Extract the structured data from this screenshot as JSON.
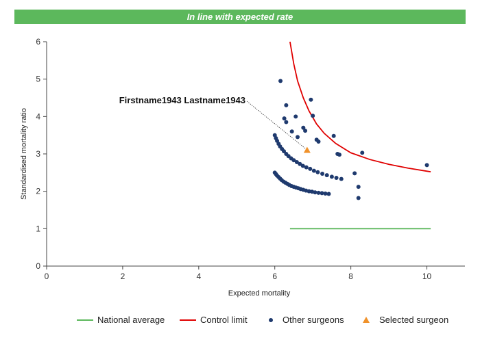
{
  "banner": {
    "text": "In line with expected rate",
    "color": "#5cb85c"
  },
  "chart_data": {
    "type": "scatter",
    "xlabel": "Expected mortality",
    "ylabel": "Standardised mortality ratio",
    "xlim": [
      0,
      11
    ],
    "ylim": [
      0,
      6
    ],
    "xticks": [
      0,
      2,
      4,
      6,
      8,
      10
    ],
    "yticks": [
      0,
      1,
      2,
      3,
      4,
      5,
      6
    ],
    "grid": false,
    "legend_placement": "bottom",
    "annotation": {
      "text": "Firstname1943 Lastname1943",
      "target": [
        6.85,
        3.1
      ]
    },
    "series": [
      {
        "name": "National average",
        "type": "line",
        "color": "#5cb85c",
        "x": [
          6.4,
          10.1
        ],
        "y": [
          1.0,
          1.0
        ]
      },
      {
        "name": "Control limit",
        "type": "line",
        "color": "#e00000",
        "x": [
          6.4,
          6.5,
          6.6,
          6.75,
          6.9,
          7.1,
          7.3,
          7.6,
          8.0,
          8.5,
          9.0,
          9.5,
          10.1
        ],
        "y": [
          6.0,
          5.4,
          4.95,
          4.5,
          4.15,
          3.8,
          3.55,
          3.28,
          3.03,
          2.85,
          2.72,
          2.62,
          2.52
        ]
      },
      {
        "name": "Other surgeons",
        "type": "scatter",
        "color": "#1f3a6e",
        "x": [
          6.0,
          6.03,
          6.06,
          6.1,
          6.14,
          6.18,
          6.23,
          6.28,
          6.33,
          6.38,
          6.44,
          6.5,
          6.56,
          6.62,
          6.68,
          6.75,
          6.82,
          6.9,
          6.98,
          7.06,
          7.15,
          7.24,
          7.33,
          7.42,
          6.0,
          6.03,
          6.06,
          6.1,
          6.14,
          6.19,
          6.24,
          6.3,
          6.36,
          6.43,
          6.5,
          6.58,
          6.66,
          6.74,
          6.83,
          6.93,
          7.03,
          7.13,
          7.25,
          7.37,
          7.5,
          7.62,
          7.75,
          6.15,
          6.25,
          6.3,
          6.3,
          6.45,
          6.55,
          6.6,
          6.75,
          6.8,
          6.95,
          7.0,
          7.1,
          7.15,
          7.55,
          7.65,
          7.7,
          8.1,
          8.2,
          8.2,
          8.3,
          10.0
        ],
        "y": [
          2.5,
          2.46,
          2.42,
          2.38,
          2.34,
          2.3,
          2.26,
          2.23,
          2.2,
          2.17,
          2.14,
          2.12,
          2.1,
          2.08,
          2.06,
          2.04,
          2.02,
          2.0,
          1.99,
          1.97,
          1.96,
          1.95,
          1.94,
          1.93,
          3.5,
          3.42,
          3.35,
          3.27,
          3.2,
          3.13,
          3.07,
          3.0,
          2.94,
          2.88,
          2.83,
          2.78,
          2.73,
          2.68,
          2.64,
          2.6,
          2.55,
          2.51,
          2.47,
          2.43,
          2.39,
          2.36,
          2.33,
          4.95,
          3.95,
          3.85,
          4.3,
          3.6,
          4.0,
          3.45,
          3.7,
          3.62,
          4.45,
          4.02,
          3.38,
          3.33,
          3.48,
          3.0,
          2.98,
          2.48,
          2.12,
          1.82,
          3.03,
          2.7
        ]
      },
      {
        "name": "Selected surgeon",
        "type": "scatter",
        "marker": "triangle",
        "color": "#f0922b",
        "x": [
          6.85
        ],
        "y": [
          3.1
        ]
      }
    ]
  }
}
